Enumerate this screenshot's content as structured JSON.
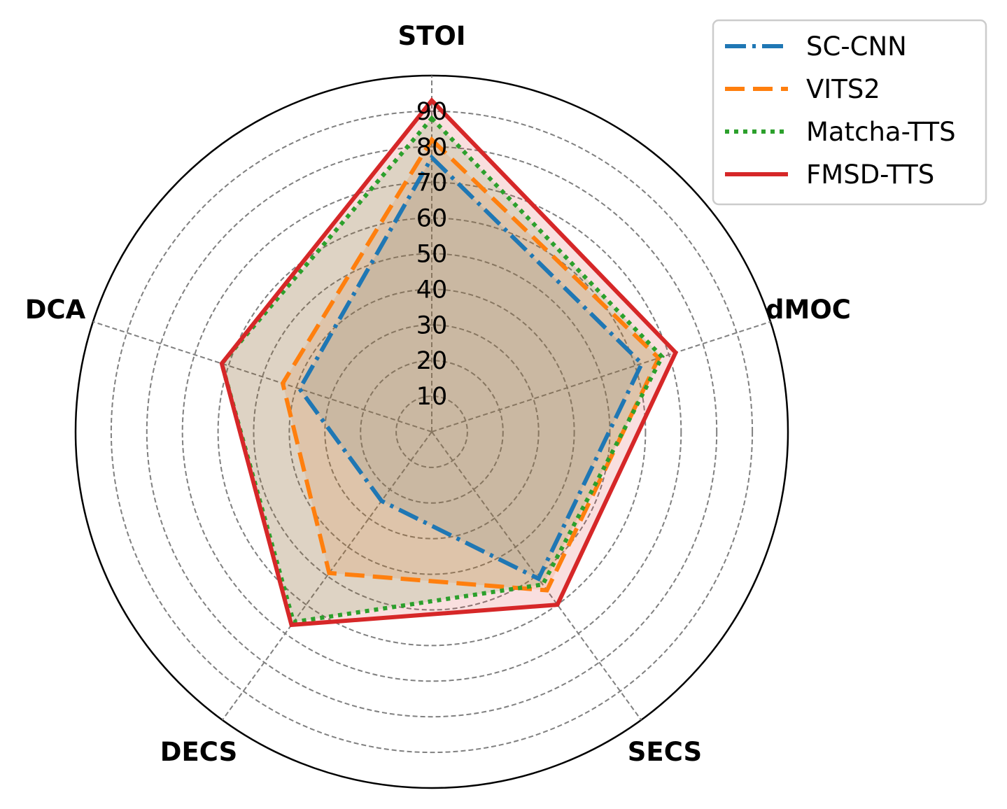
{
  "chart_data": {
    "type": "radar",
    "axes": [
      "STOI",
      "dMOC",
      "SECS",
      "DECS",
      "DCA"
    ],
    "rlim": [
      0,
      100
    ],
    "rticks": [
      10,
      20,
      30,
      40,
      50,
      60,
      70,
      80,
      90
    ],
    "rtick_labels": [
      "10",
      "20",
      "30",
      "40",
      "50",
      "60",
      "70",
      "80",
      "90"
    ],
    "grid": true,
    "legend_position": "top-right",
    "series": [
      {
        "name": "SC-CNN",
        "values": [
          77,
          62,
          51,
          24,
          39
        ],
        "color": "#1f77b4",
        "style": "dashdot"
      },
      {
        "name": "VITS2",
        "values": [
          82,
          67,
          55,
          49,
          44
        ],
        "color": "#ff7f0e",
        "style": "dashed"
      },
      {
        "name": "Matcha-TTS",
        "values": [
          88,
          68,
          53,
          66,
          62
        ],
        "color": "#2ca02c",
        "style": "dotted"
      },
      {
        "name": "FMSD-TTS",
        "values": [
          93,
          72,
          60,
          67,
          62
        ],
        "color": "#d62728",
        "style": "solid"
      }
    ]
  }
}
